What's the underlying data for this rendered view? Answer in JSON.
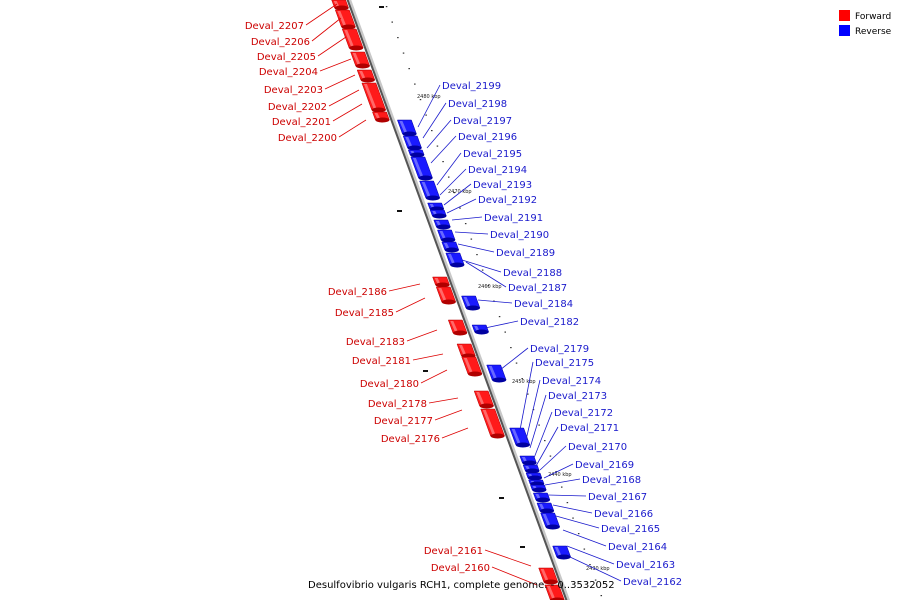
{
  "legend": {
    "forward_label": "Forward",
    "reverse_label": "Reverse",
    "forward_color": "#ff0000",
    "reverse_color": "#0000ff"
  },
  "caption": "Desulfovibrio vulgaris RCH1, complete genome. - 0..3532052",
  "ticks": [
    {
      "label": "2480 kbp"
    },
    {
      "label": "2470 kbp"
    },
    {
      "label": "2460 kbp"
    },
    {
      "label": "2450 kbp"
    },
    {
      "label": "2440 kbp"
    },
    {
      "label": "2430 kbp"
    }
  ],
  "forward_genes": [
    "Deval_2207",
    "Deval_2206",
    "Deval_2205",
    "Deval_2204",
    "Deval_2203",
    "Deval_2202",
    "Deval_2201",
    "Deval_2200",
    "Deval_2186",
    "Deval_2185",
    "Deval_2183",
    "Deval_2181",
    "Deval_2180",
    "Deval_2178",
    "Deval_2177",
    "Deval_2176",
    "Deval_2161",
    "Deval_2160"
  ],
  "reverse_genes": [
    "Deval_2199",
    "Deval_2198",
    "Deval_2197",
    "Deval_2196",
    "Deval_2195",
    "Deval_2194",
    "Deval_2193",
    "Deval_2192",
    "Deval_2191",
    "Deval_2190",
    "Deval_2189",
    "Deval_2188",
    "Deval_2187",
    "Deval_2184",
    "Deval_2182",
    "Deval_2179",
    "Deval_2175",
    "Deval_2174",
    "Deval_2173",
    "Deval_2172",
    "Deval_2171",
    "Deval_2170",
    "Deval_2169",
    "Deval_2168",
    "Deval_2167",
    "Deval_2166",
    "Deval_2165",
    "Deval_2164",
    "Deval_2163",
    "Deval_2162"
  ]
}
